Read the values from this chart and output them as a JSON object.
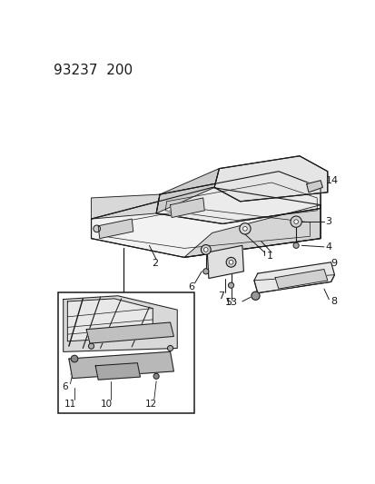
{
  "title": "93237  200",
  "bg": "#ffffff",
  "lc": "#1a1a1a",
  "fw": 4.14,
  "fh": 5.33,
  "dpi": 100
}
